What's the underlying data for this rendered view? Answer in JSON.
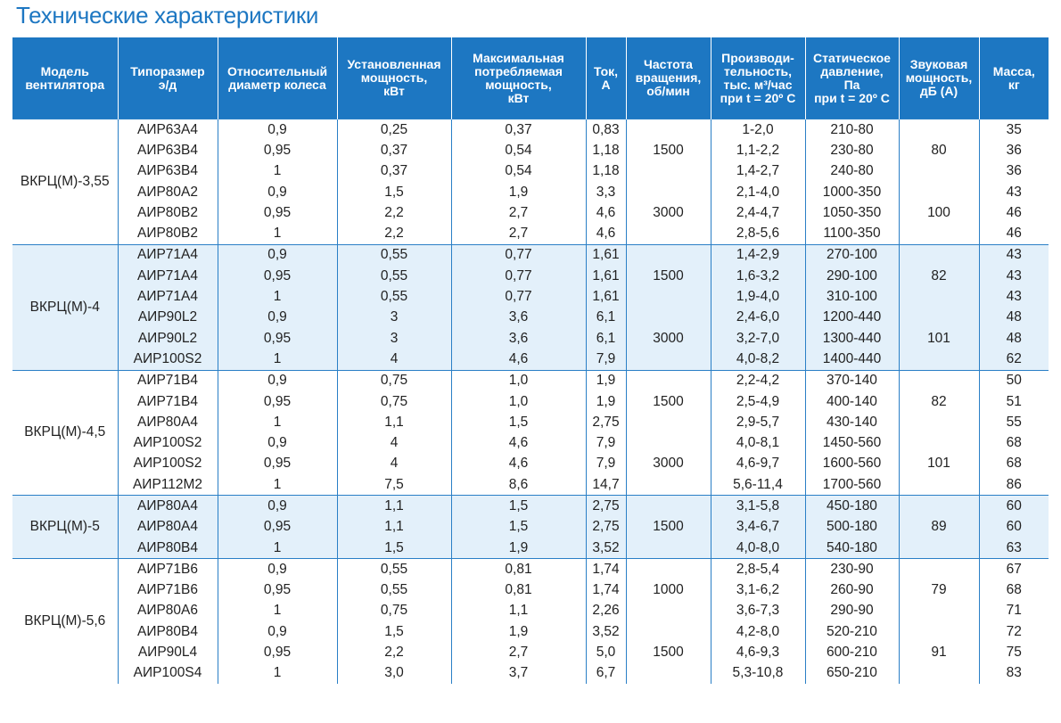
{
  "title": "Технические характеристики",
  "table": {
    "headers": [
      "Модель\nвентилятора",
      "Типоразмер\nэ/д",
      "Относительный\nдиаметр колеса",
      "Установленная\nмощность,\nкВт",
      "Максимальная\nпотребляемая\nмощность,\nкВт",
      "Ток,\nА",
      "Частота\nвращения,\nоб/мин",
      "Производи-\nтельность,\nтыс. м³/час\nпри t = 20º С",
      "Статическое\nдавление,\nПа\nпри t = 20º С",
      "Звуковая\nмощность,\nдБ (А)",
      "Масса,\nкг"
    ],
    "groups": [
      {
        "model": "ВКРЦ(М)-3,55",
        "rows": [
          [
            "АИР63А4",
            "0,9",
            "0,25",
            "0,37",
            "0,83",
            "1-2,0",
            "210-80",
            "35"
          ],
          [
            "АИР63В4",
            "0,95",
            "0,37",
            "0,54",
            "1,18",
            "1,1-2,2",
            "230-80",
            "36"
          ],
          [
            "АИР63В4",
            "1",
            "0,37",
            "0,54",
            "1,18",
            "1,4-2,7",
            "240-80",
            "36"
          ],
          [
            "АИР80А2",
            "0,9",
            "1,5",
            "1,9",
            "3,3",
            "2,1-4,0",
            "1000-350",
            "43"
          ],
          [
            "АИР80В2",
            "0,95",
            "2,2",
            "2,7",
            "4,6",
            "2,4-4,7",
            "1050-350",
            "46"
          ],
          [
            "АИР80В2",
            "1",
            "2,2",
            "2,7",
            "4,6",
            "2,8-5,6",
            "1100-350",
            "46"
          ]
        ],
        "speed": [
          {
            "value": "1500",
            "span": 3
          },
          {
            "value": "3000",
            "span": 3
          }
        ],
        "sound": [
          {
            "value": "80",
            "span": 3
          },
          {
            "value": "100",
            "span": 3
          }
        ]
      },
      {
        "model": "ВКРЦ(М)-4",
        "rows": [
          [
            "АИР71А4",
            "0,9",
            "0,55",
            "0,77",
            "1,61",
            "1,4-2,9",
            "270-100",
            "43"
          ],
          [
            "АИР71А4",
            "0,95",
            "0,55",
            "0,77",
            "1,61",
            "1,6-3,2",
            "290-100",
            "43"
          ],
          [
            "АИР71А4",
            "1",
            "0,55",
            "0,77",
            "1,61",
            "1,9-4,0",
            "310-100",
            "43"
          ],
          [
            "АИР90L2",
            "0,9",
            "3",
            "3,6",
            "6,1",
            "2,4-6,0",
            "1200-440",
            "48"
          ],
          [
            "АИР90L2",
            "0,95",
            "3",
            "3,6",
            "6,1",
            "3,2-7,0",
            "1300-440",
            "48"
          ],
          [
            "АИР100S2",
            "1",
            "4",
            "4,6",
            "7,9",
            "4,0-8,2",
            "1400-440",
            "62"
          ]
        ],
        "speed": [
          {
            "value": "1500",
            "span": 3
          },
          {
            "value": "3000",
            "span": 3
          }
        ],
        "sound": [
          {
            "value": "82",
            "span": 3
          },
          {
            "value": "101",
            "span": 3
          }
        ]
      },
      {
        "model": "ВКРЦ(М)-4,5",
        "rows": [
          [
            "АИР71В4",
            "0,9",
            "0,75",
            "1,0",
            "1,9",
            "2,2-4,2",
            "370-140",
            "50"
          ],
          [
            "АИР71В4",
            "0,95",
            "0,75",
            "1,0",
            "1,9",
            "2,5-4,9",
            "400-140",
            "51"
          ],
          [
            "АИР80А4",
            "1",
            "1,1",
            "1,5",
            "2,75",
            "2,9-5,7",
            "430-140",
            "55"
          ],
          [
            "АИР100S2",
            "0,9",
            "4",
            "4,6",
            "7,9",
            "4,0-8,1",
            "1450-560",
            "68"
          ],
          [
            "АИР100S2",
            "0,95",
            "4",
            "4,6",
            "7,9",
            "4,6-9,7",
            "1600-560",
            "68"
          ],
          [
            "АИР112М2",
            "1",
            "7,5",
            "8,6",
            "14,7",
            "5,6-11,4",
            "1700-560",
            "86"
          ]
        ],
        "speed": [
          {
            "value": "1500",
            "span": 3
          },
          {
            "value": "3000",
            "span": 3
          }
        ],
        "sound": [
          {
            "value": "82",
            "span": 3
          },
          {
            "value": "101",
            "span": 3
          }
        ]
      },
      {
        "model": "ВКРЦ(М)-5",
        "rows": [
          [
            "АИР80А4",
            "0,9",
            "1,1",
            "1,5",
            "2,75",
            "3,1-5,8",
            "450-180",
            "60"
          ],
          [
            "АИР80А4",
            "0,95",
            "1,1",
            "1,5",
            "2,75",
            "3,4-6,7",
            "500-180",
            "60"
          ],
          [
            "АИР80В4",
            "1",
            "1,5",
            "1,9",
            "3,52",
            "4,0-8,0",
            "540-180",
            "63"
          ]
        ],
        "speed": [
          {
            "value": "1500",
            "span": 3
          }
        ],
        "sound": [
          {
            "value": "89",
            "span": 3
          }
        ]
      },
      {
        "model": "ВКРЦ(М)-5,6",
        "rows": [
          [
            "АИР71В6",
            "0,9",
            "0,55",
            "0,81",
            "1,74",
            "2,8-5,4",
            "230-90",
            "67"
          ],
          [
            "АИР71В6",
            "0,95",
            "0,55",
            "0,81",
            "1,74",
            "3,1-6,2",
            "260-90",
            "68"
          ],
          [
            "АИР80А6",
            "1",
            "0,75",
            "1,1",
            "2,26",
            "3,6-7,3",
            "290-90",
            "71"
          ],
          [
            "АИР80В4",
            "0,9",
            "1,5",
            "1,9",
            "3,52",
            "4,2-8,0",
            "520-210",
            "72"
          ],
          [
            "АИР90L4",
            "0,95",
            "2,2",
            "2,7",
            "5,0",
            "4,6-9,3",
            "600-210",
            "75"
          ],
          [
            "АИР100S4",
            "1",
            "3,0",
            "3,7",
            "6,7",
            "5,3-10,8",
            "650-210",
            "83"
          ]
        ],
        "speed": [
          {
            "value": "1000",
            "span": 3
          },
          {
            "value": "1500",
            "span": 3
          }
        ],
        "sound": [
          {
            "value": "79",
            "span": 3
          },
          {
            "value": "91",
            "span": 3
          }
        ]
      }
    ]
  }
}
